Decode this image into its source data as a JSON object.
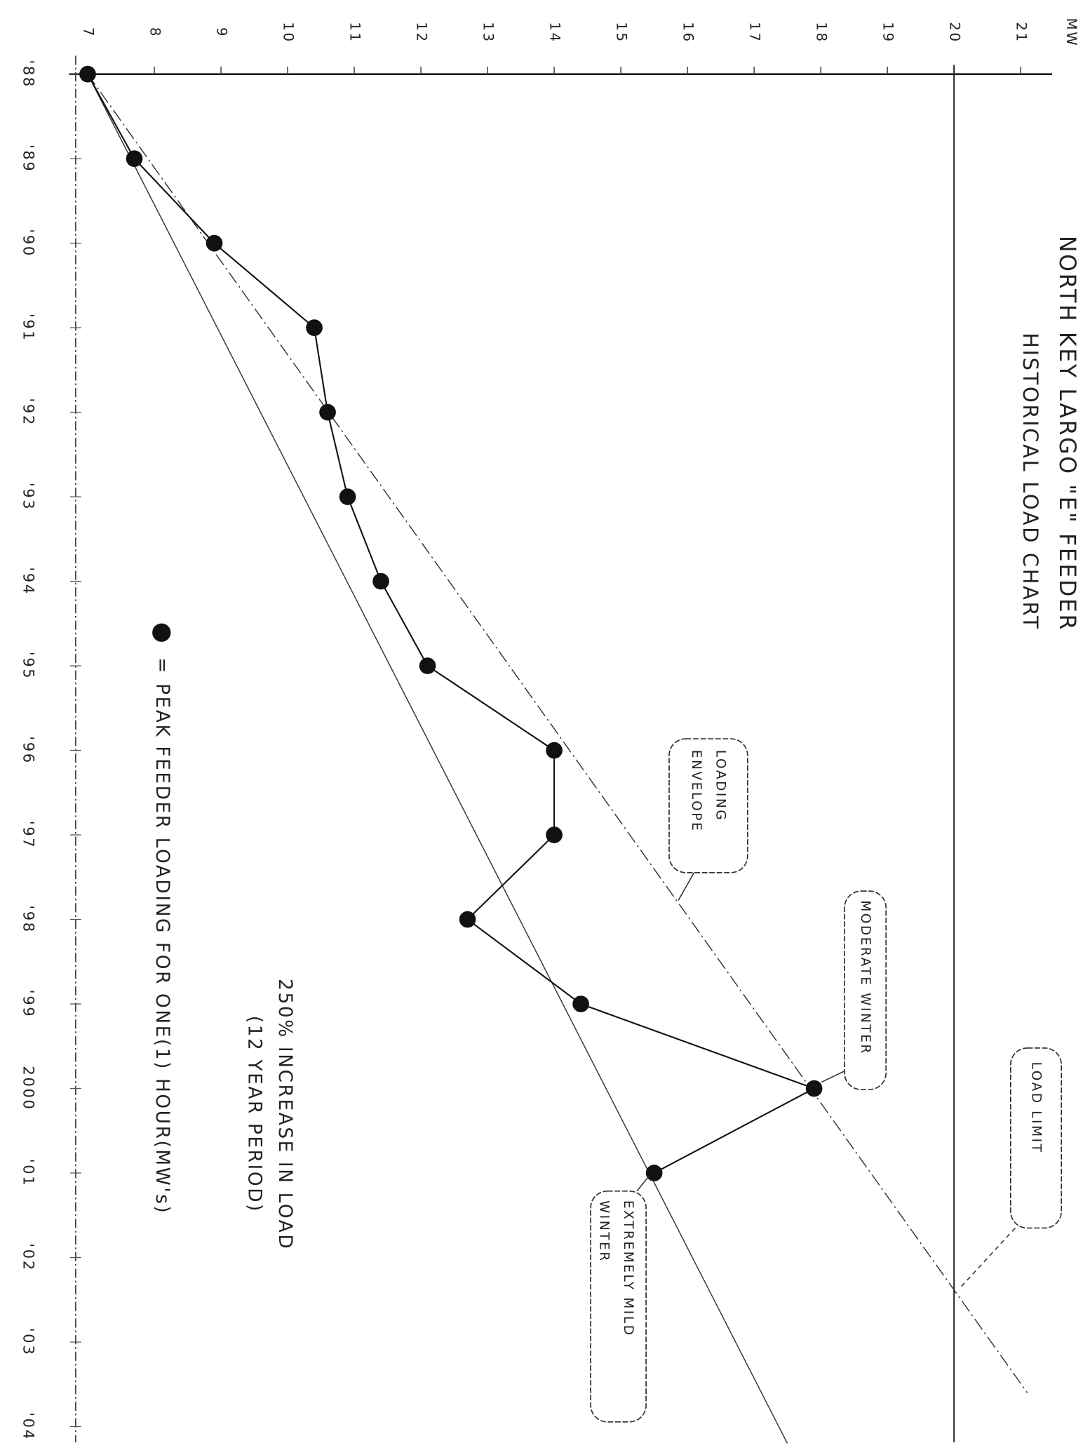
{
  "chart_data": {
    "type": "line",
    "title": "NORTH KEY LARGO \"E\" FEEDER",
    "subtitle": "HISTORICAL LOAD CHART",
    "y_label": "MW",
    "x": [
      1988,
      1989,
      1990,
      1991,
      1992,
      1993,
      1994,
      1995,
      1996,
      1997,
      1998,
      1999,
      2000,
      2001
    ],
    "series": [
      {
        "name": "PEAK FEEDER LOADING FOR ONE(1) HOUR(MW's)",
        "color": "#111111",
        "values": [
          7.0,
          7.7,
          8.9,
          10.4,
          10.6,
          10.9,
          11.4,
          12.1,
          14.0,
          14.0,
          12.7,
          14.4,
          17.9,
          15.5
        ]
      }
    ],
    "legend_prefix": "=",
    "xlim": [
      1988,
      2004.25
    ],
    "xticks": [
      {
        "value": 1988,
        "label": "'88"
      },
      {
        "value": 1989,
        "label": "'89"
      },
      {
        "value": 1990,
        "label": "'90"
      },
      {
        "value": 1991,
        "label": "'91"
      },
      {
        "value": 1992,
        "label": "'92"
      },
      {
        "value": 1993,
        "label": "'93"
      },
      {
        "value": 1994,
        "label": "'94"
      },
      {
        "value": 1995,
        "label": "'95"
      },
      {
        "value": 1996,
        "label": "'96"
      },
      {
        "value": 1997,
        "label": "'97"
      },
      {
        "value": 1998,
        "label": "'98"
      },
      {
        "value": 1999,
        "label": "'99"
      },
      2000,
      {
        "value": 2001,
        "label": "'01"
      },
      {
        "value": 2002,
        "label": "'02"
      },
      {
        "value": 2003,
        "label": "'03"
      },
      {
        "value": 2004,
        "label": "'04"
      }
    ],
    "ylim": [
      7,
      21.5
    ],
    "yticks": [
      7,
      8,
      9,
      10,
      11,
      12,
      13,
      14,
      15,
      16,
      17,
      18,
      19,
      20,
      21
    ],
    "envelope_lines": [
      {
        "x": [
          1988,
          2003.6
        ],
        "values": [
          7,
          21.1
        ]
      },
      {
        "x": [
          1988,
          2004.2
        ],
        "values": [
          7,
          17.5
        ]
      }
    ],
    "load_limit": 20,
    "annotations": [
      {
        "lines": [
          "250% INCREASE IN LOAD",
          "(12 YEAR PERIOD)"
        ]
      }
    ],
    "callouts": [
      {
        "lines": [
          "LOADING",
          "ENVELOPE"
        ]
      },
      {
        "lines": [
          "MODERATE WINTER"
        ]
      },
      {
        "lines": [
          "LOAD LIMIT"
        ]
      },
      {
        "lines": [
          "EXTREMELY MILD",
          "WINTER"
        ]
      }
    ]
  }
}
